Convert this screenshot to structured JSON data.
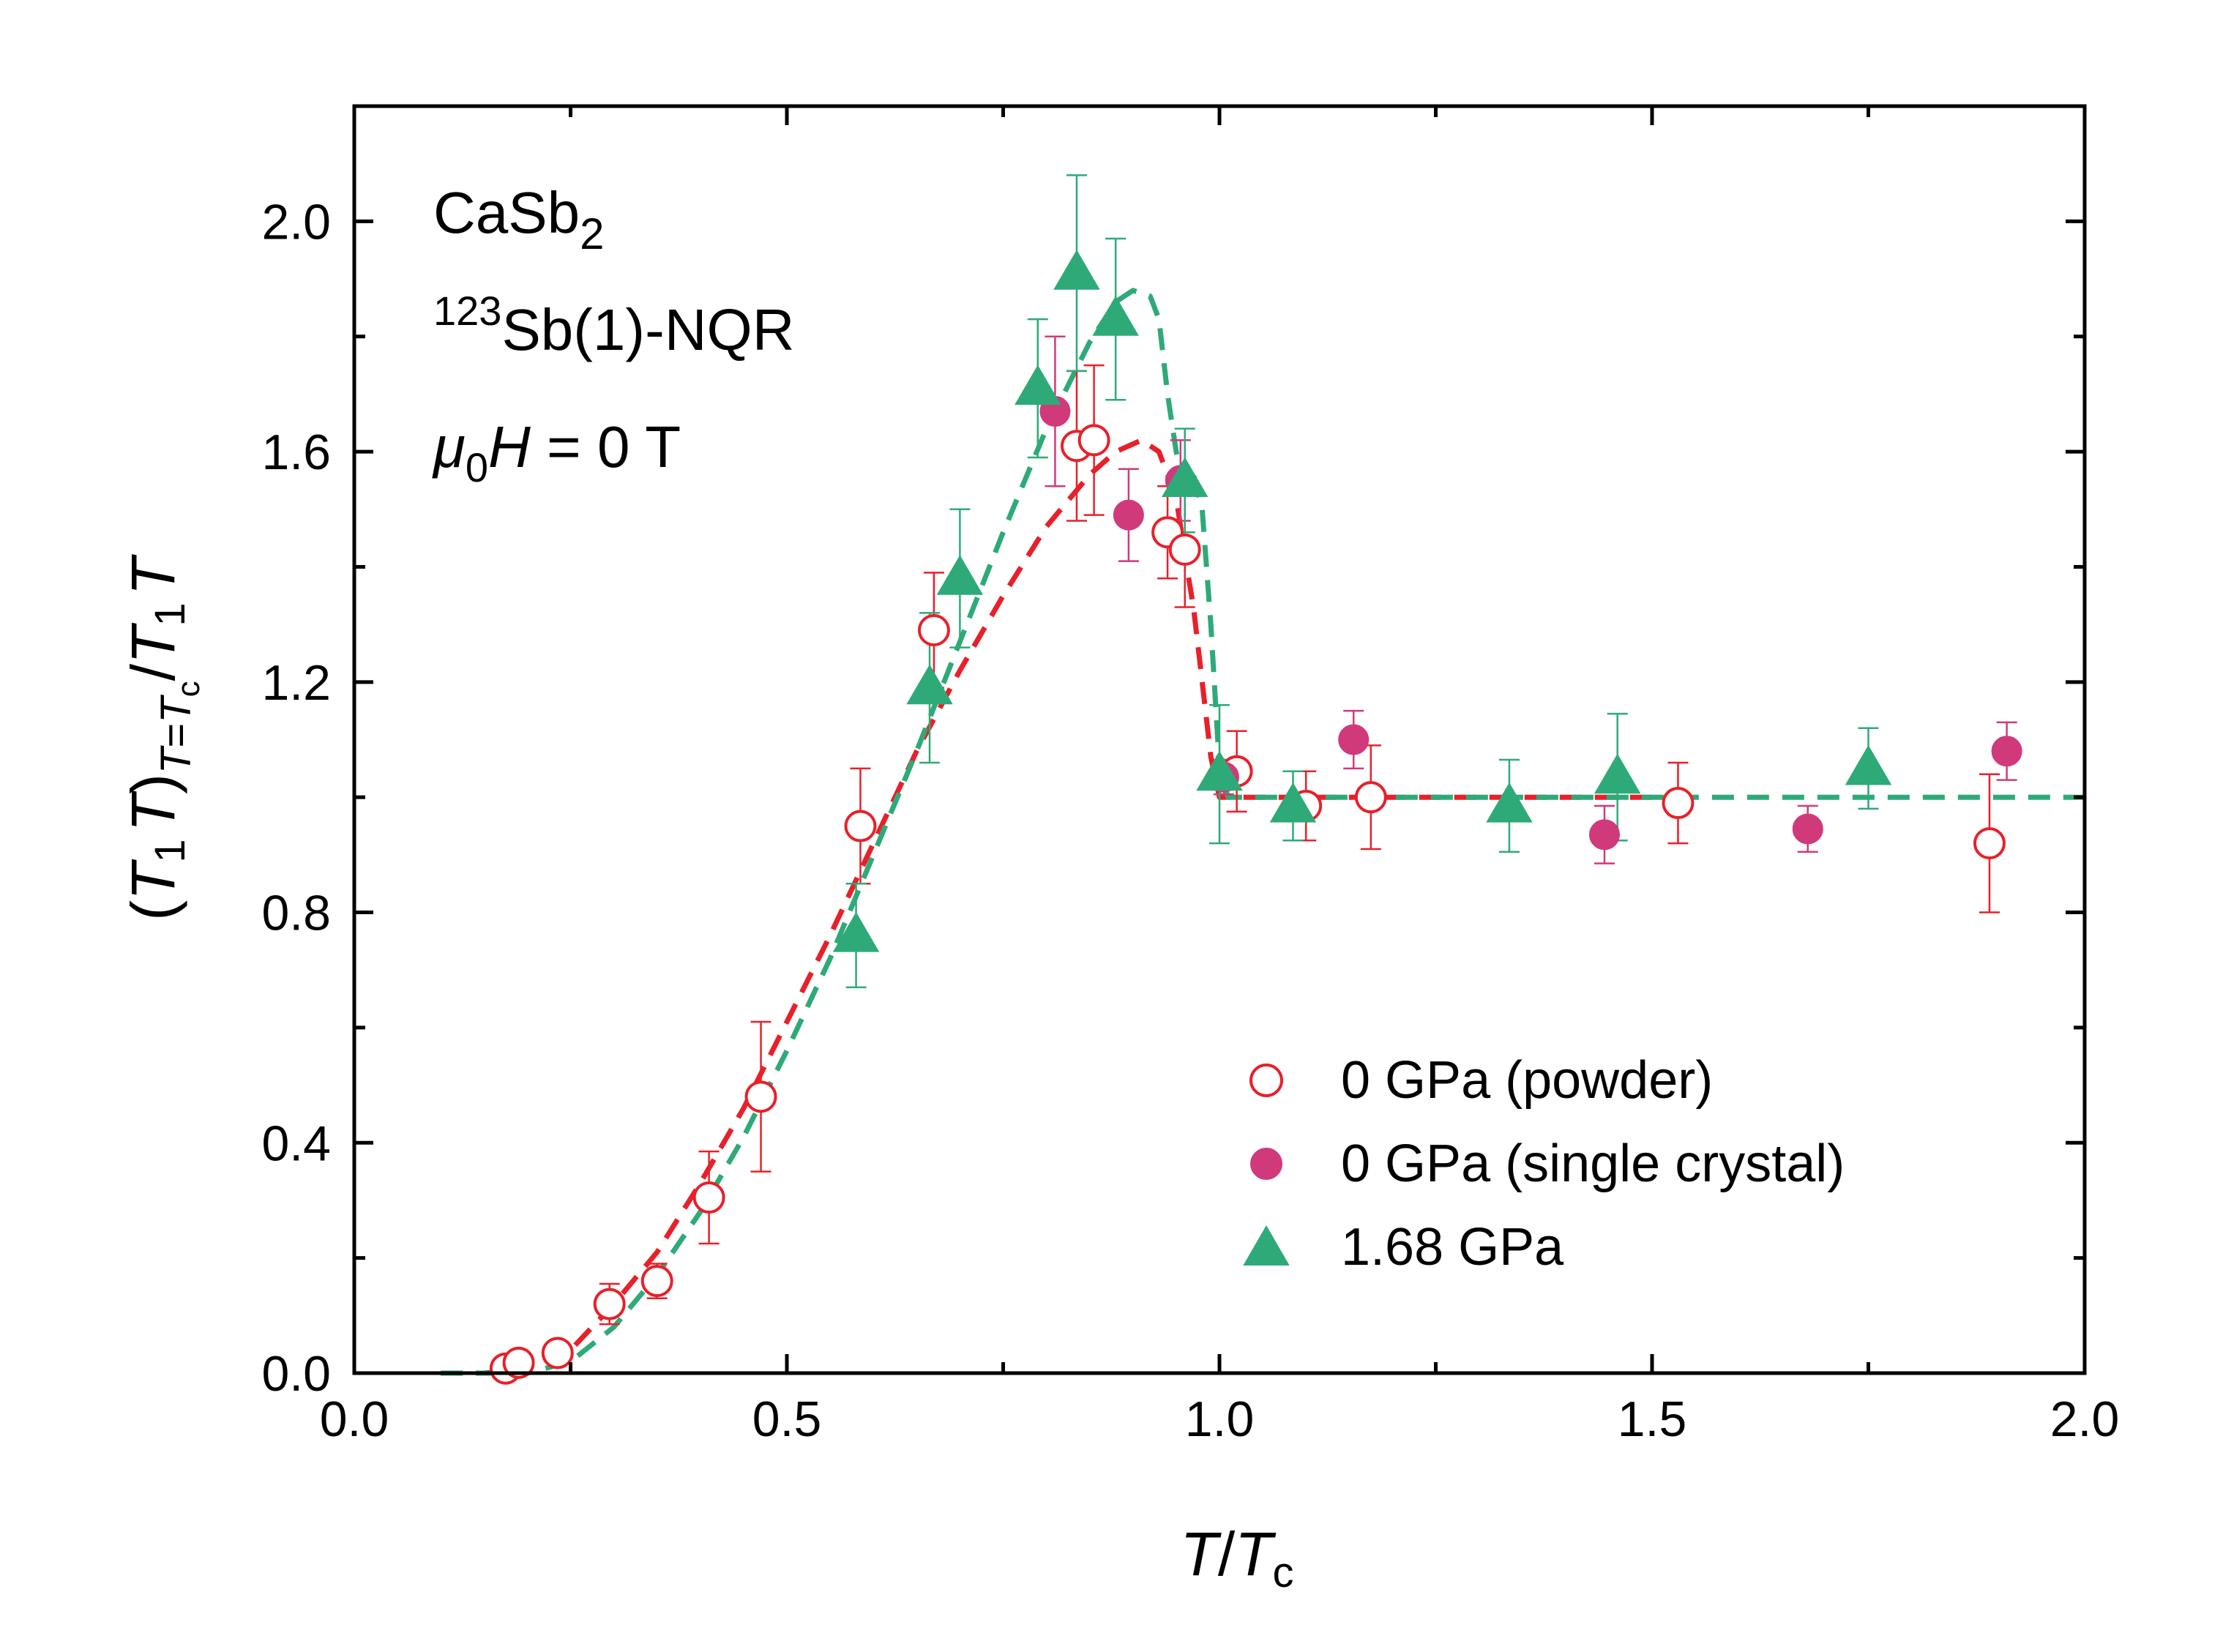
{
  "chart_data": {
    "type": "scatter",
    "title": "",
    "xlabel": {
      "main": "T",
      "slash": "/",
      "denom": "T",
      "denom_sub": "c"
    },
    "ylabel": {
      "open": "(",
      "t1": "T",
      "one": "1",
      "t": "T",
      "close": ")",
      "sub_t": "T",
      "sub_eq": "=",
      "sub_tc": "T",
      "sub_c": "c",
      "slash": "/",
      "t1b": "T",
      "oneb": "1",
      "tb": "T"
    },
    "xlim": [
      0.0,
      2.0
    ],
    "ylim": [
      0.0,
      2.2
    ],
    "xticks": [
      "0.0",
      "0.5",
      "1.0",
      "1.5",
      "2.0"
    ],
    "yticks": [
      "0.0",
      "0.4",
      "0.8",
      "1.2",
      "1.6",
      "2.0"
    ],
    "xtick_values": [
      0.0,
      0.5,
      1.0,
      1.5,
      2.0
    ],
    "ytick_values": [
      0.0,
      0.4,
      0.8,
      1.2,
      1.6,
      2.0
    ],
    "annotations": {
      "compound": {
        "base": "CaSb",
        "sub": "2"
      },
      "nucleus": {
        "sup": "123",
        "text": "Sb(1)-NQR"
      },
      "field": {
        "mu": "μ",
        "mu_sub": "0",
        "h": "H",
        "rest": " = 0 T"
      }
    },
    "legend_position": "lower-right",
    "series": [
      {
        "name": "0 GPa (powder)",
        "marker": "open-circle",
        "color": "#e8202a",
        "points": [
          {
            "x": 0.175,
            "y": 0.008,
            "err": 0.01
          },
          {
            "x": 0.19,
            "y": 0.018,
            "err": 0.01
          },
          {
            "x": 0.235,
            "y": 0.035,
            "err": 0.015
          },
          {
            "x": 0.295,
            "y": 0.12,
            "err": 0.035
          },
          {
            "x": 0.35,
            "y": 0.16,
            "err": 0.03
          },
          {
            "x": 0.41,
            "y": 0.305,
            "err": 0.08
          },
          {
            "x": 0.47,
            "y": 0.48,
            "err": 0.13
          },
          {
            "x": 0.585,
            "y": 0.95,
            "err": 0.1
          },
          {
            "x": 0.67,
            "y": 1.29,
            "err": 0.1
          },
          {
            "x": 0.835,
            "y": 1.61,
            "err": 0.13
          },
          {
            "x": 0.855,
            "y": 1.62,
            "err": 0.13
          },
          {
            "x": 0.94,
            "y": 1.46,
            "err": 0.08
          },
          {
            "x": 0.96,
            "y": 1.43,
            "err": 0.1
          },
          {
            "x": 1.02,
            "y": 1.045,
            "err": 0.07
          },
          {
            "x": 1.1,
            "y": 0.985,
            "err": 0.06
          },
          {
            "x": 1.175,
            "y": 1.0,
            "err": 0.09
          },
          {
            "x": 1.53,
            "y": 0.99,
            "err": 0.07
          },
          {
            "x": 1.89,
            "y": 0.92,
            "err": 0.12
          }
        ]
      },
      {
        "name": "0 GPa (single crystal)",
        "marker": "filled-circle",
        "color": "#d03a7a",
        "points": [
          {
            "x": 0.81,
            "y": 1.67,
            "err": 0.13
          },
          {
            "x": 0.895,
            "y": 1.49,
            "err": 0.08
          },
          {
            "x": 0.955,
            "y": 1.55,
            "err": 0.07
          },
          {
            "x": 1.005,
            "y": 1.035,
            "err": 0.03
          },
          {
            "x": 1.155,
            "y": 1.1,
            "err": 0.05
          },
          {
            "x": 1.445,
            "y": 0.935,
            "err": 0.05
          },
          {
            "x": 1.68,
            "y": 0.945,
            "err": 0.04
          },
          {
            "x": 1.91,
            "y": 1.08,
            "err": 0.05
          }
        ]
      },
      {
        "name": "1.68 GPa",
        "marker": "filled-triangle",
        "color": "#2eaa78",
        "points": [
          {
            "x": 0.58,
            "y": 0.76,
            "err": 0.09
          },
          {
            "x": 0.665,
            "y": 1.19,
            "err": 0.13
          },
          {
            "x": 0.7,
            "y": 1.38,
            "err": 0.12
          },
          {
            "x": 0.79,
            "y": 1.71,
            "err": 0.12
          },
          {
            "x": 0.835,
            "y": 1.91,
            "err": 0.17
          },
          {
            "x": 0.88,
            "y": 1.83,
            "err": 0.14
          },
          {
            "x": 0.96,
            "y": 1.55,
            "err": 0.09
          },
          {
            "x": 1.0,
            "y": 1.04,
            "err": 0.12
          },
          {
            "x": 1.085,
            "y": 0.985,
            "err": 0.06
          },
          {
            "x": 1.335,
            "y": 0.985,
            "err": 0.08
          },
          {
            "x": 1.46,
            "y": 1.035,
            "err": 0.11
          },
          {
            "x": 1.75,
            "y": 1.05,
            "err": 0.07
          }
        ]
      }
    ],
    "fit_lines": [
      {
        "name": "fit 0 GPa",
        "color": "#e8202a",
        "style": "dashed",
        "points": [
          [
            0.1,
            0.0
          ],
          [
            0.15,
            0.0
          ],
          [
            0.2,
            0.008
          ],
          [
            0.25,
            0.04
          ],
          [
            0.3,
            0.12
          ],
          [
            0.35,
            0.21
          ],
          [
            0.4,
            0.33
          ],
          [
            0.45,
            0.46
          ],
          [
            0.5,
            0.61
          ],
          [
            0.55,
            0.76
          ],
          [
            0.6,
            0.92
          ],
          [
            0.65,
            1.08
          ],
          [
            0.7,
            1.22
          ],
          [
            0.75,
            1.35
          ],
          [
            0.8,
            1.47
          ],
          [
            0.85,
            1.56
          ],
          [
            0.88,
            1.6
          ],
          [
            0.91,
            1.62
          ],
          [
            0.93,
            1.6
          ],
          [
            0.95,
            1.52
          ],
          [
            0.96,
            1.42
          ],
          [
            0.97,
            1.33
          ],
          [
            0.98,
            1.2
          ],
          [
            0.99,
            1.07
          ],
          [
            1.0,
            1.0
          ],
          [
            1.2,
            1.0
          ],
          [
            1.5,
            1.0
          ]
        ]
      },
      {
        "name": "fit 1.68 GPa",
        "color": "#2eaa78",
        "style": "dashed",
        "points": [
          [
            0.1,
            0.0
          ],
          [
            0.2,
            0.0
          ],
          [
            0.25,
            0.02
          ],
          [
            0.3,
            0.08
          ],
          [
            0.35,
            0.17
          ],
          [
            0.4,
            0.28
          ],
          [
            0.45,
            0.41
          ],
          [
            0.5,
            0.56
          ],
          [
            0.55,
            0.72
          ],
          [
            0.6,
            0.9
          ],
          [
            0.65,
            1.08
          ],
          [
            0.7,
            1.27
          ],
          [
            0.75,
            1.46
          ],
          [
            0.8,
            1.64
          ],
          [
            0.85,
            1.79
          ],
          [
            0.88,
            1.86
          ],
          [
            0.9,
            1.88
          ],
          [
            0.92,
            1.87
          ],
          [
            0.93,
            1.83
          ],
          [
            0.94,
            1.7
          ],
          [
            0.95,
            1.6
          ],
          [
            0.96,
            1.54
          ],
          [
            0.97,
            1.56
          ],
          [
            0.98,
            1.5
          ],
          [
            0.99,
            1.3
          ],
          [
            1.0,
            1.05
          ],
          [
            1.01,
            1.0
          ],
          [
            1.5,
            1.0
          ],
          [
            2.0,
            1.0
          ]
        ]
      }
    ]
  }
}
